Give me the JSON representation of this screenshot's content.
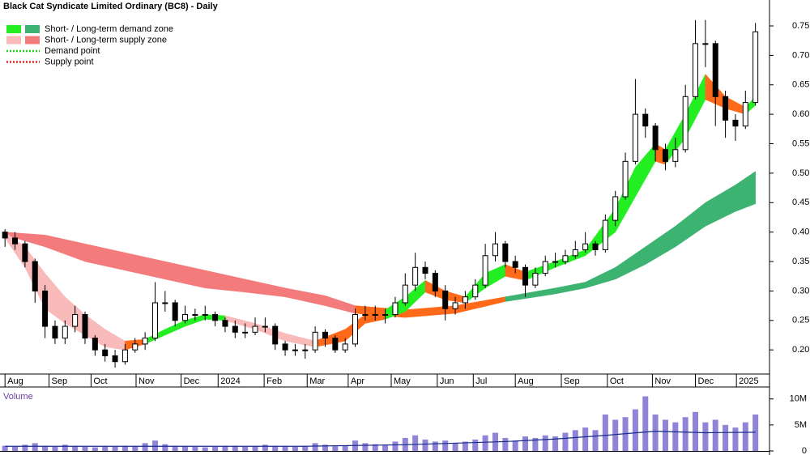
{
  "chart_data": {
    "type": "candlestick",
    "title": "Black Cat Syndicate Limited Ordinary (BC8) - Daily",
    "legend": [
      {
        "label": "Short- / Long-term demand zone",
        "colors": [
          "#22ee22",
          "#3cb371"
        ],
        "style": "box"
      },
      {
        "label": "Short- / Long-term supply zone",
        "colors": [
          "#f9baba",
          "#f47b7b"
        ],
        "style": "box"
      },
      {
        "label": "Demand point",
        "colors": [
          "#22cc22"
        ],
        "style": "dotted"
      },
      {
        "label": "Supply point",
        "colors": [
          "#dd2222"
        ],
        "style": "dotted"
      }
    ],
    "xlim": [
      -0.5,
      76
    ],
    "xticks": [
      {
        "value": 0,
        "label": "Aug"
      },
      {
        "value": 4.4,
        "label": "Sep"
      },
      {
        "value": 8.6,
        "label": "Oct"
      },
      {
        "value": 13.1,
        "label": "Nov"
      },
      {
        "value": 17.6,
        "label": "Dec"
      },
      {
        "value": 21.3,
        "label": "2024"
      },
      {
        "value": 25.9,
        "label": "Feb"
      },
      {
        "value": 30.2,
        "label": "Mar"
      },
      {
        "value": 34.3,
        "label": "Apr"
      },
      {
        "value": 38.6,
        "label": "May"
      },
      {
        "value": 43.2,
        "label": "Jun"
      },
      {
        "value": 46.8,
        "label": "Jul"
      },
      {
        "value": 51,
        "label": "Aug"
      },
      {
        "value": 55.6,
        "label": "Sep"
      },
      {
        "value": 60.2,
        "label": "Oct"
      },
      {
        "value": 64.7,
        "label": "Nov"
      },
      {
        "value": 69,
        "label": "Dec"
      },
      {
        "value": 73.1,
        "label": "2025"
      }
    ],
    "ylim": [
      0.159,
      0.794
    ],
    "yticks": [
      {
        "value": 0.2,
        "label": "0.20"
      },
      0.25,
      {
        "value": 0.3,
        "label": "0.30"
      },
      0.35,
      {
        "value": 0.4,
        "label": "0.40"
      },
      0.45,
      {
        "value": 0.5,
        "label": "0.50"
      },
      0.55,
      {
        "value": 0.6,
        "label": "0.60"
      },
      0.65,
      {
        "value": 0.7,
        "label": "0.70"
      },
      0.75
    ],
    "x": [
      0,
      1,
      2,
      3,
      4,
      5,
      6,
      7,
      8,
      9,
      10,
      11,
      12,
      13,
      14,
      15,
      16,
      17,
      18,
      19,
      20,
      21,
      22,
      23,
      24,
      25,
      26,
      27,
      28,
      29,
      30,
      31,
      32,
      33,
      34,
      35,
      36,
      37,
      38,
      39,
      40,
      41,
      42,
      43,
      44,
      45,
      46,
      47,
      48,
      49,
      50,
      51,
      52,
      53,
      54,
      55,
      56,
      57,
      58,
      59,
      60,
      61,
      62,
      63,
      64,
      65,
      66,
      67,
      68,
      69,
      70,
      71,
      72,
      73,
      74,
      75
    ],
    "ohlc": [
      [
        0.4,
        0.405,
        0.375,
        0.39
      ],
      [
        0.39,
        0.4,
        0.37,
        0.38
      ],
      [
        0.38,
        0.385,
        0.34,
        0.35
      ],
      [
        0.35,
        0.355,
        0.28,
        0.3
      ],
      [
        0.3,
        0.31,
        0.22,
        0.24
      ],
      [
        0.24,
        0.25,
        0.21,
        0.22
      ],
      [
        0.22,
        0.25,
        0.21,
        0.24
      ],
      [
        0.24,
        0.275,
        0.23,
        0.26
      ],
      [
        0.26,
        0.265,
        0.21,
        0.22
      ],
      [
        0.22,
        0.225,
        0.19,
        0.2
      ],
      [
        0.2,
        0.21,
        0.18,
        0.19
      ],
      [
        0.19,
        0.2,
        0.17,
        0.18
      ],
      [
        0.18,
        0.21,
        0.175,
        0.2
      ],
      [
        0.2,
        0.22,
        0.195,
        0.21
      ],
      [
        0.21,
        0.23,
        0.2,
        0.22
      ],
      [
        0.22,
        0.315,
        0.215,
        0.28
      ],
      [
        0.28,
        0.3,
        0.265,
        0.28
      ],
      [
        0.28,
        0.285,
        0.24,
        0.25
      ],
      [
        0.25,
        0.275,
        0.245,
        0.26
      ],
      [
        0.26,
        0.27,
        0.25,
        0.26
      ],
      [
        0.26,
        0.275,
        0.25,
        0.26
      ],
      [
        0.26,
        0.265,
        0.24,
        0.25
      ],
      [
        0.25,
        0.255,
        0.23,
        0.24
      ],
      [
        0.24,
        0.25,
        0.22,
        0.23
      ],
      [
        0.23,
        0.245,
        0.22,
        0.23
      ],
      [
        0.23,
        0.255,
        0.225,
        0.24
      ],
      [
        0.24,
        0.255,
        0.23,
        0.24
      ],
      [
        0.24,
        0.245,
        0.2,
        0.21
      ],
      [
        0.21,
        0.215,
        0.19,
        0.2
      ],
      [
        0.2,
        0.21,
        0.19,
        0.2
      ],
      [
        0.2,
        0.21,
        0.185,
        0.2
      ],
      [
        0.2,
        0.24,
        0.195,
        0.23
      ],
      [
        0.23,
        0.235,
        0.205,
        0.22
      ],
      [
        0.22,
        0.225,
        0.195,
        0.2
      ],
      [
        0.2,
        0.22,
        0.195,
        0.21
      ],
      [
        0.21,
        0.27,
        0.205,
        0.26
      ],
      [
        0.26,
        0.275,
        0.25,
        0.26
      ],
      [
        0.26,
        0.275,
        0.25,
        0.26
      ],
      [
        0.26,
        0.27,
        0.245,
        0.26
      ],
      [
        0.26,
        0.29,
        0.255,
        0.28
      ],
      [
        0.28,
        0.33,
        0.275,
        0.31
      ],
      [
        0.31,
        0.365,
        0.3,
        0.34
      ],
      [
        0.34,
        0.35,
        0.32,
        0.33
      ],
      [
        0.33,
        0.335,
        0.29,
        0.3
      ],
      [
        0.3,
        0.31,
        0.25,
        0.27
      ],
      [
        0.27,
        0.29,
        0.26,
        0.28
      ],
      [
        0.28,
        0.3,
        0.27,
        0.29
      ],
      [
        0.29,
        0.32,
        0.285,
        0.31
      ],
      [
        0.31,
        0.38,
        0.305,
        0.36
      ],
      [
        0.36,
        0.4,
        0.35,
        0.38
      ],
      [
        0.38,
        0.385,
        0.34,
        0.35
      ],
      [
        0.35,
        0.36,
        0.33,
        0.34
      ],
      [
        0.34,
        0.345,
        0.29,
        0.31
      ],
      [
        0.31,
        0.34,
        0.305,
        0.33
      ],
      [
        0.33,
        0.36,
        0.325,
        0.35
      ],
      [
        0.35,
        0.365,
        0.34,
        0.35
      ],
      [
        0.35,
        0.37,
        0.345,
        0.36
      ],
      [
        0.36,
        0.385,
        0.355,
        0.37
      ],
      [
        0.37,
        0.4,
        0.365,
        0.38
      ],
      [
        0.38,
        0.385,
        0.36,
        0.37
      ],
      [
        0.37,
        0.43,
        0.365,
        0.42
      ],
      [
        0.42,
        0.47,
        0.41,
        0.46
      ],
      [
        0.46,
        0.535,
        0.455,
        0.52
      ],
      [
        0.52,
        0.66,
        0.515,
        0.6
      ],
      [
        0.6,
        0.61,
        0.56,
        0.58
      ],
      [
        0.58,
        0.585,
        0.52,
        0.54
      ],
      [
        0.54,
        0.55,
        0.505,
        0.52
      ],
      [
        0.52,
        0.56,
        0.51,
        0.54
      ],
      [
        0.54,
        0.65,
        0.535,
        0.63
      ],
      [
        0.63,
        0.76,
        0.625,
        0.72
      ],
      [
        0.72,
        0.76,
        0.68,
        0.72
      ],
      [
        0.72,
        0.725,
        0.58,
        0.63
      ],
      [
        0.63,
        0.64,
        0.56,
        0.59
      ],
      [
        0.59,
        0.6,
        0.555,
        0.58
      ],
      [
        0.58,
        0.64,
        0.575,
        0.62
      ],
      [
        0.62,
        0.755,
        0.615,
        0.74
      ]
    ],
    "zones": [
      {
        "color": "#f47b7b",
        "x": [
          0,
          4,
          8,
          12,
          16,
          20,
          24,
          28,
          32,
          35
        ],
        "upper": [
          0.4,
          0.395,
          0.38,
          0.365,
          0.35,
          0.335,
          0.32,
          0.305,
          0.292,
          0.275
        ],
        "lower": [
          0.395,
          0.375,
          0.35,
          0.335,
          0.32,
          0.305,
          0.298,
          0.29,
          0.275,
          0.262
        ]
      },
      {
        "color": "#ff6a1a",
        "x": [
          35,
          40,
          45,
          50
        ],
        "upper": [
          0.275,
          0.268,
          0.275,
          0.29
        ],
        "lower": [
          0.262,
          0.255,
          0.262,
          0.282
        ]
      },
      {
        "color": "#3cb371",
        "x": [
          50,
          55,
          58,
          61,
          64,
          67,
          70,
          73,
          75
        ],
        "upper": [
          0.29,
          0.305,
          0.315,
          0.34,
          0.375,
          0.41,
          0.45,
          0.48,
          0.503
        ],
        "lower": [
          0.282,
          0.295,
          0.305,
          0.32,
          0.345,
          0.375,
          0.41,
          0.435,
          0.448
        ]
      },
      {
        "color": "#f9baba",
        "x": [
          0,
          2,
          4,
          6,
          8,
          10,
          12
        ],
        "upper": [
          0.4,
          0.375,
          0.33,
          0.29,
          0.26,
          0.235,
          0.215
        ],
        "lower": [
          0.39,
          0.34,
          0.27,
          0.245,
          0.225,
          0.205,
          0.2
        ]
      },
      {
        "color": "#ff6a1a",
        "x": [
          12,
          14
        ],
        "upper": [
          0.215,
          0.218
        ],
        "lower": [
          0.2,
          0.21
        ]
      },
      {
        "color": "#22ee22",
        "x": [
          14,
          16,
          18,
          20,
          22
        ],
        "upper": [
          0.218,
          0.235,
          0.25,
          0.26,
          0.258
        ],
        "lower": [
          0.21,
          0.225,
          0.24,
          0.252,
          0.25
        ]
      },
      {
        "color": "#f9baba",
        "x": [
          22,
          25,
          28,
          31
        ],
        "upper": [
          0.258,
          0.245,
          0.228,
          0.215
        ],
        "lower": [
          0.25,
          0.235,
          0.215,
          0.205
        ]
      },
      {
        "color": "#ff6a1a",
        "x": [
          31,
          34,
          36,
          38
        ],
        "upper": [
          0.215,
          0.235,
          0.26,
          0.268
        ],
        "lower": [
          0.205,
          0.215,
          0.245,
          0.252
        ]
      },
      {
        "color": "#22ee22",
        "x": [
          38,
          40,
          42
        ],
        "upper": [
          0.268,
          0.29,
          0.318
        ],
        "lower": [
          0.252,
          0.265,
          0.298
        ]
      },
      {
        "color": "#ff6a1a",
        "x": [
          42,
          44,
          46
        ],
        "upper": [
          0.318,
          0.3,
          0.29
        ],
        "lower": [
          0.298,
          0.285,
          0.28
        ]
      },
      {
        "color": "#22ee22",
        "x": [
          46,
          48,
          50
        ],
        "upper": [
          0.29,
          0.33,
          0.345
        ],
        "lower": [
          0.28,
          0.305,
          0.325
        ]
      },
      {
        "color": "#ff6a1a",
        "x": [
          50,
          52
        ],
        "upper": [
          0.345,
          0.332
        ],
        "lower": [
          0.325,
          0.318
        ]
      },
      {
        "color": "#22ee22",
        "x": [
          52,
          55,
          58,
          61,
          63,
          65
        ],
        "upper": [
          0.332,
          0.35,
          0.37,
          0.44,
          0.51,
          0.55
        ],
        "lower": [
          0.318,
          0.34,
          0.36,
          0.4,
          0.46,
          0.52
        ]
      },
      {
        "color": "#ff6a1a",
        "x": [
          65,
          66
        ],
        "upper": [
          0.55,
          0.54
        ],
        "lower": [
          0.52,
          0.515
        ]
      },
      {
        "color": "#22ee22",
        "x": [
          66,
          68,
          70
        ],
        "upper": [
          0.54,
          0.6,
          0.668
        ],
        "lower": [
          0.515,
          0.56,
          0.625
        ]
      },
      {
        "color": "#ff6a1a",
        "x": [
          70,
          72,
          74
        ],
        "upper": [
          0.668,
          0.63,
          0.612
        ],
        "lower": [
          0.625,
          0.61,
          0.6
        ]
      },
      {
        "color": "#22ee22",
        "x": [
          74,
          75
        ],
        "upper": [
          0.612,
          0.63
        ],
        "lower": [
          0.6,
          0.615
        ]
      }
    ],
    "volume": {
      "title": "Volume",
      "color": "#7b6fd0",
      "ma_color": "#1a2a8a",
      "ylim": [
        0,
        12300000
      ],
      "yticks": [
        0,
        {
          "value": 5000000,
          "label": "5M"
        },
        {
          "value": 10000000,
          "label": "10M"
        }
      ],
      "values": [
        1000000,
        800000,
        1200000,
        1500000,
        1000000,
        800000,
        1200000,
        1000000,
        800000,
        700000,
        900000,
        800000,
        1000000,
        900000,
        1500000,
        2000000,
        1300000,
        1000000,
        900000,
        800000,
        700000,
        800000,
        900000,
        1000000,
        800000,
        900000,
        1200000,
        1000000,
        900000,
        800000,
        1000000,
        1500000,
        1200000,
        900000,
        1000000,
        2000000,
        1500000,
        1300000,
        1200000,
        1800000,
        2500000,
        3000000,
        2200000,
        1800000,
        2000000,
        1500000,
        1800000,
        2200000,
        3000000,
        3500000,
        2500000,
        2000000,
        2800000,
        2500000,
        3000000,
        2800000,
        3500000,
        4000000,
        4500000,
        4000000,
        7000000,
        6000000,
        6500000,
        8000000,
        10500000,
        7000000,
        6000000,
        5500000,
        6500000,
        7500000,
        5500000,
        6000000,
        5000000,
        4500000,
        5500000,
        7000000
      ],
      "ma": {
        "x": [
          0,
          10,
          20,
          30,
          40,
          50,
          55,
          60,
          65,
          70,
          75
        ],
        "values": [
          900000,
          900000,
          900000,
          900000,
          1200000,
          1800000,
          2300000,
          3000000,
          3800000,
          3500000,
          3600000
        ]
      }
    }
  }
}
